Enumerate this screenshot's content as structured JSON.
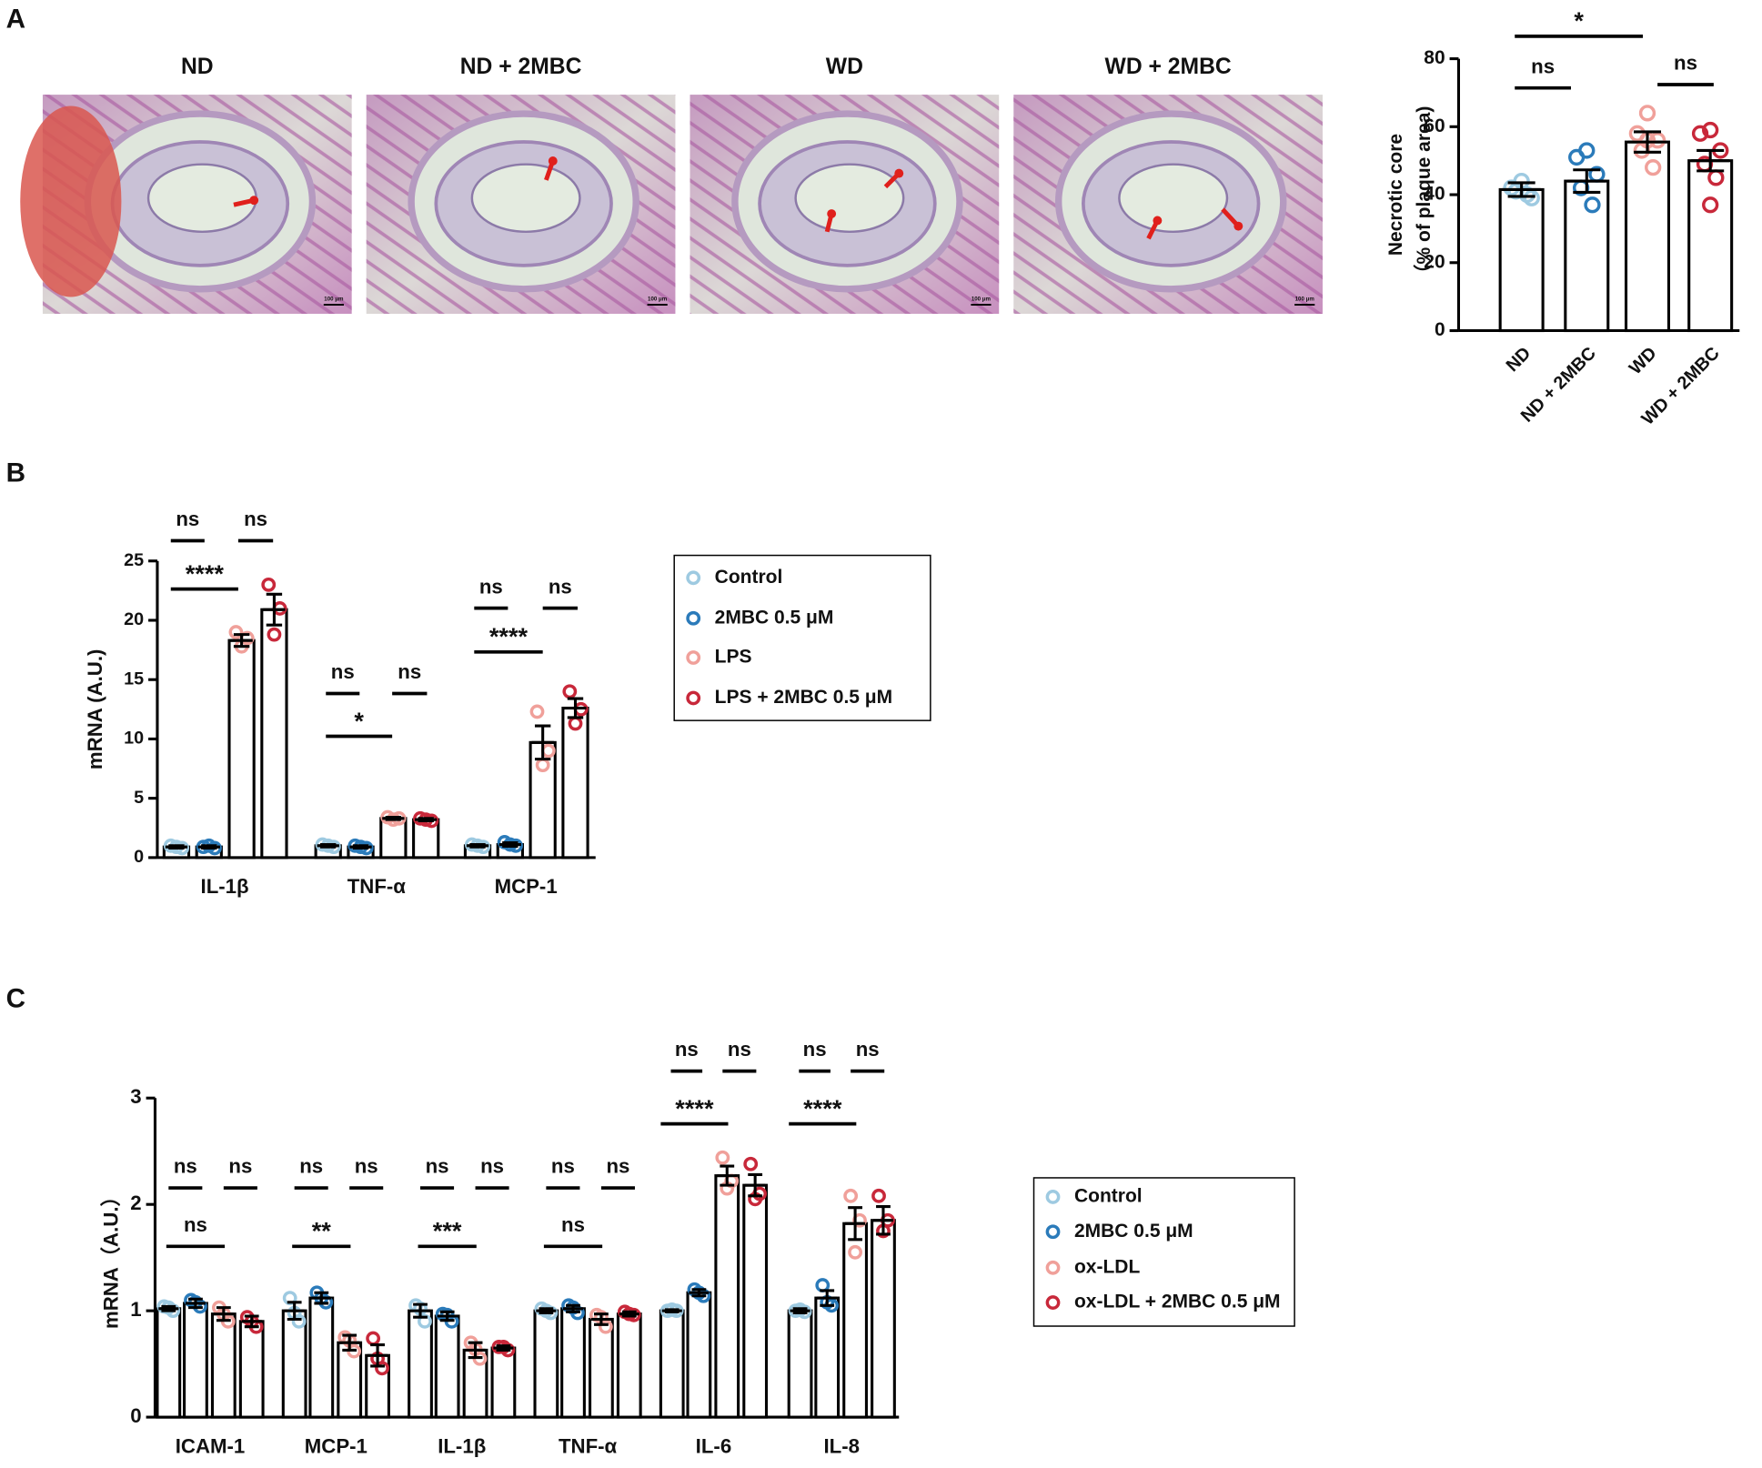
{
  "panel_labels": [
    "A",
    "B",
    "C"
  ],
  "images": [
    {
      "title": "ND",
      "scale_bar": "100 μm"
    },
    {
      "title": "ND + 2MBC",
      "scale_bar": "100 μm"
    },
    {
      "title": "WD",
      "scale_bar": "100 μm"
    },
    {
      "title": "WD + 2MBC",
      "scale_bar": "100 μm"
    }
  ],
  "chart_data": [
    {
      "type": "bar",
      "ylabel": [
        "Necrotic core",
        "（% of plaque area)"
      ],
      "categories": [
        "ND",
        "ND + 2MBC",
        "WD",
        "WD + 2MBC"
      ],
      "ylim": [
        0,
        80
      ],
      "yticks": [
        0,
        20,
        40,
        60,
        80
      ],
      "series": [
        {
          "colors": [
            "#9ecae1",
            "#2b7bba",
            "#f0a09a",
            "#c8283a"
          ],
          "values": [
            41.5,
            44,
            55.5,
            50
          ],
          "errors": [
            2,
            3.3,
            3,
            3
          ],
          "points": [
            [
              44,
              42,
              39,
              41,
              40
            ],
            [
              53,
              51,
              46,
              42,
              37
            ],
            [
              64,
              58,
              56,
              53,
              48,
              56
            ],
            [
              59,
              58,
              53,
              49,
              45,
              37
            ]
          ]
        }
      ],
      "annotations": [
        "ns",
        "*",
        "ns"
      ]
    },
    {
      "type": "bar",
      "ylabel": "mRNA (A.U.)",
      "categories": [
        "IL-1β",
        "TNF-α",
        "MCP-1"
      ],
      "ylim": [
        0,
        25
      ],
      "yticks": [
        0,
        5,
        10,
        15,
        20,
        25
      ],
      "legend": "right",
      "series": [
        {
          "name": "Control",
          "color": "#9ecae1",
          "values": [
            0.9,
            1.0,
            1.0
          ],
          "errors": [
            0.1,
            0.1,
            0.1
          ],
          "points": [
            [
              1.0,
              0.8,
              0.9
            ],
            [
              1.1,
              0.9,
              1.0
            ],
            [
              1.1,
              0.9,
              1.0
            ]
          ]
        },
        {
          "name": "2MBC 0.5 μM",
          "color": "#2b7bba",
          "values": [
            0.9,
            0.9,
            1.1
          ],
          "errors": [
            0.1,
            0.1,
            0.15
          ],
          "points": [
            [
              0.9,
              0.8,
              1.0
            ],
            [
              1.0,
              0.8,
              0.9
            ],
            [
              1.3,
              1.0,
              1.1
            ]
          ]
        },
        {
          "name": "LPS",
          "color": "#f0a09a",
          "values": [
            18.3,
            3.3,
            9.7
          ],
          "errors": [
            0.5,
            0.1,
            1.4
          ],
          "points": [
            [
              19.0,
              18.5,
              17.8
            ],
            [
              3.4,
              3.3,
              3.2
            ],
            [
              12.3,
              9.0,
              7.8
            ]
          ]
        },
        {
          "name": "LPS + 2MBC 0.5 μM",
          "color": "#c8283a",
          "values": [
            20.9,
            3.2,
            12.6
          ],
          "errors": [
            1.3,
            0.1,
            0.8
          ],
          "points": [
            [
              23.0,
              21.0,
              18.8
            ],
            [
              3.3,
              3.1,
              3.2
            ],
            [
              14.0,
              12.5,
              11.3
            ]
          ]
        }
      ],
      "annotations": [
        "ns",
        "ns",
        "****",
        "ns",
        "ns",
        "*",
        "ns",
        "ns",
        "****"
      ]
    },
    {
      "type": "bar",
      "ylabel": "mRNA（A.U.）",
      "categories": [
        "ICAM-1",
        "MCP-1",
        "IL-1β",
        "TNF-α",
        "IL-6",
        "IL-8"
      ],
      "ylim": [
        0,
        3
      ],
      "yticks": [
        0,
        1,
        2,
        3
      ],
      "legend": "right",
      "series": [
        {
          "name": "Control",
          "color": "#9ecae1",
          "values": [
            1.02,
            1.0,
            1.0,
            1.0,
            1.0,
            1.0
          ],
          "errors": [
            0.02,
            0.08,
            0.06,
            0.02,
            0.01,
            0.02
          ],
          "points": [
            [
              1.04,
              1.0,
              1.03
            ],
            [
              1.12,
              0.9,
              0.98
            ],
            [
              1.05,
              0.9,
              1.02
            ],
            [
              1.02,
              0.98,
              1.0
            ],
            [
              1.0,
              1.0,
              1.01
            ],
            [
              1.0,
              0.99,
              1.01
            ]
          ]
        },
        {
          "name": "2MBC 0.5 μM",
          "color": "#2b7bba",
          "values": [
            1.07,
            1.12,
            0.95,
            1.02,
            1.17,
            1.12
          ],
          "errors": [
            0.04,
            0.05,
            0.04,
            0.03,
            0.03,
            0.07
          ],
          "points": [
            [
              1.1,
              1.04,
              1.08
            ],
            [
              1.17,
              1.08,
              1.12
            ],
            [
              0.97,
              0.9,
              0.96
            ],
            [
              1.05,
              0.98,
              1.03
            ],
            [
              1.2,
              1.14,
              1.17
            ],
            [
              1.24,
              1.05,
              1.08
            ]
          ]
        },
        {
          "name": "ox-LDL",
          "color": "#f0a09a",
          "values": [
            0.97,
            0.7,
            0.63,
            0.92,
            2.27,
            1.82
          ],
          "errors": [
            0.06,
            0.07,
            0.07,
            0.05,
            0.09,
            0.15
          ],
          "points": [
            [
              1.03,
              0.9,
              0.97
            ],
            [
              0.75,
              0.62,
              0.72
            ],
            [
              0.7,
              0.55,
              0.64
            ],
            [
              0.96,
              0.85,
              0.94
            ],
            [
              2.44,
              2.22,
              2.15
            ],
            [
              2.08,
              1.85,
              1.55
            ]
          ]
        },
        {
          "name": "ox-LDL + 2MBC 0.5 μM",
          "color": "#c8283a",
          "values": [
            0.9,
            0.58,
            0.65,
            0.97,
            2.18,
            1.85
          ],
          "errors": [
            0.05,
            0.1,
            0.02,
            0.02,
            0.1,
            0.13
          ],
          "points": [
            [
              0.94,
              0.85,
              0.9
            ],
            [
              0.74,
              0.46,
              0.55
            ],
            [
              0.66,
              0.63,
              0.66
            ],
            [
              0.99,
              0.96,
              0.97
            ],
            [
              2.38,
              2.1,
              2.05
            ],
            [
              2.08,
              1.85,
              1.75
            ]
          ]
        }
      ],
      "annotations": [
        "ns",
        "ns",
        "ns",
        "ns",
        "ns",
        "**",
        "ns",
        "ns",
        "***",
        "ns",
        "ns",
        "ns",
        "ns",
        "ns",
        "****",
        "ns",
        "ns",
        "****"
      ]
    }
  ]
}
